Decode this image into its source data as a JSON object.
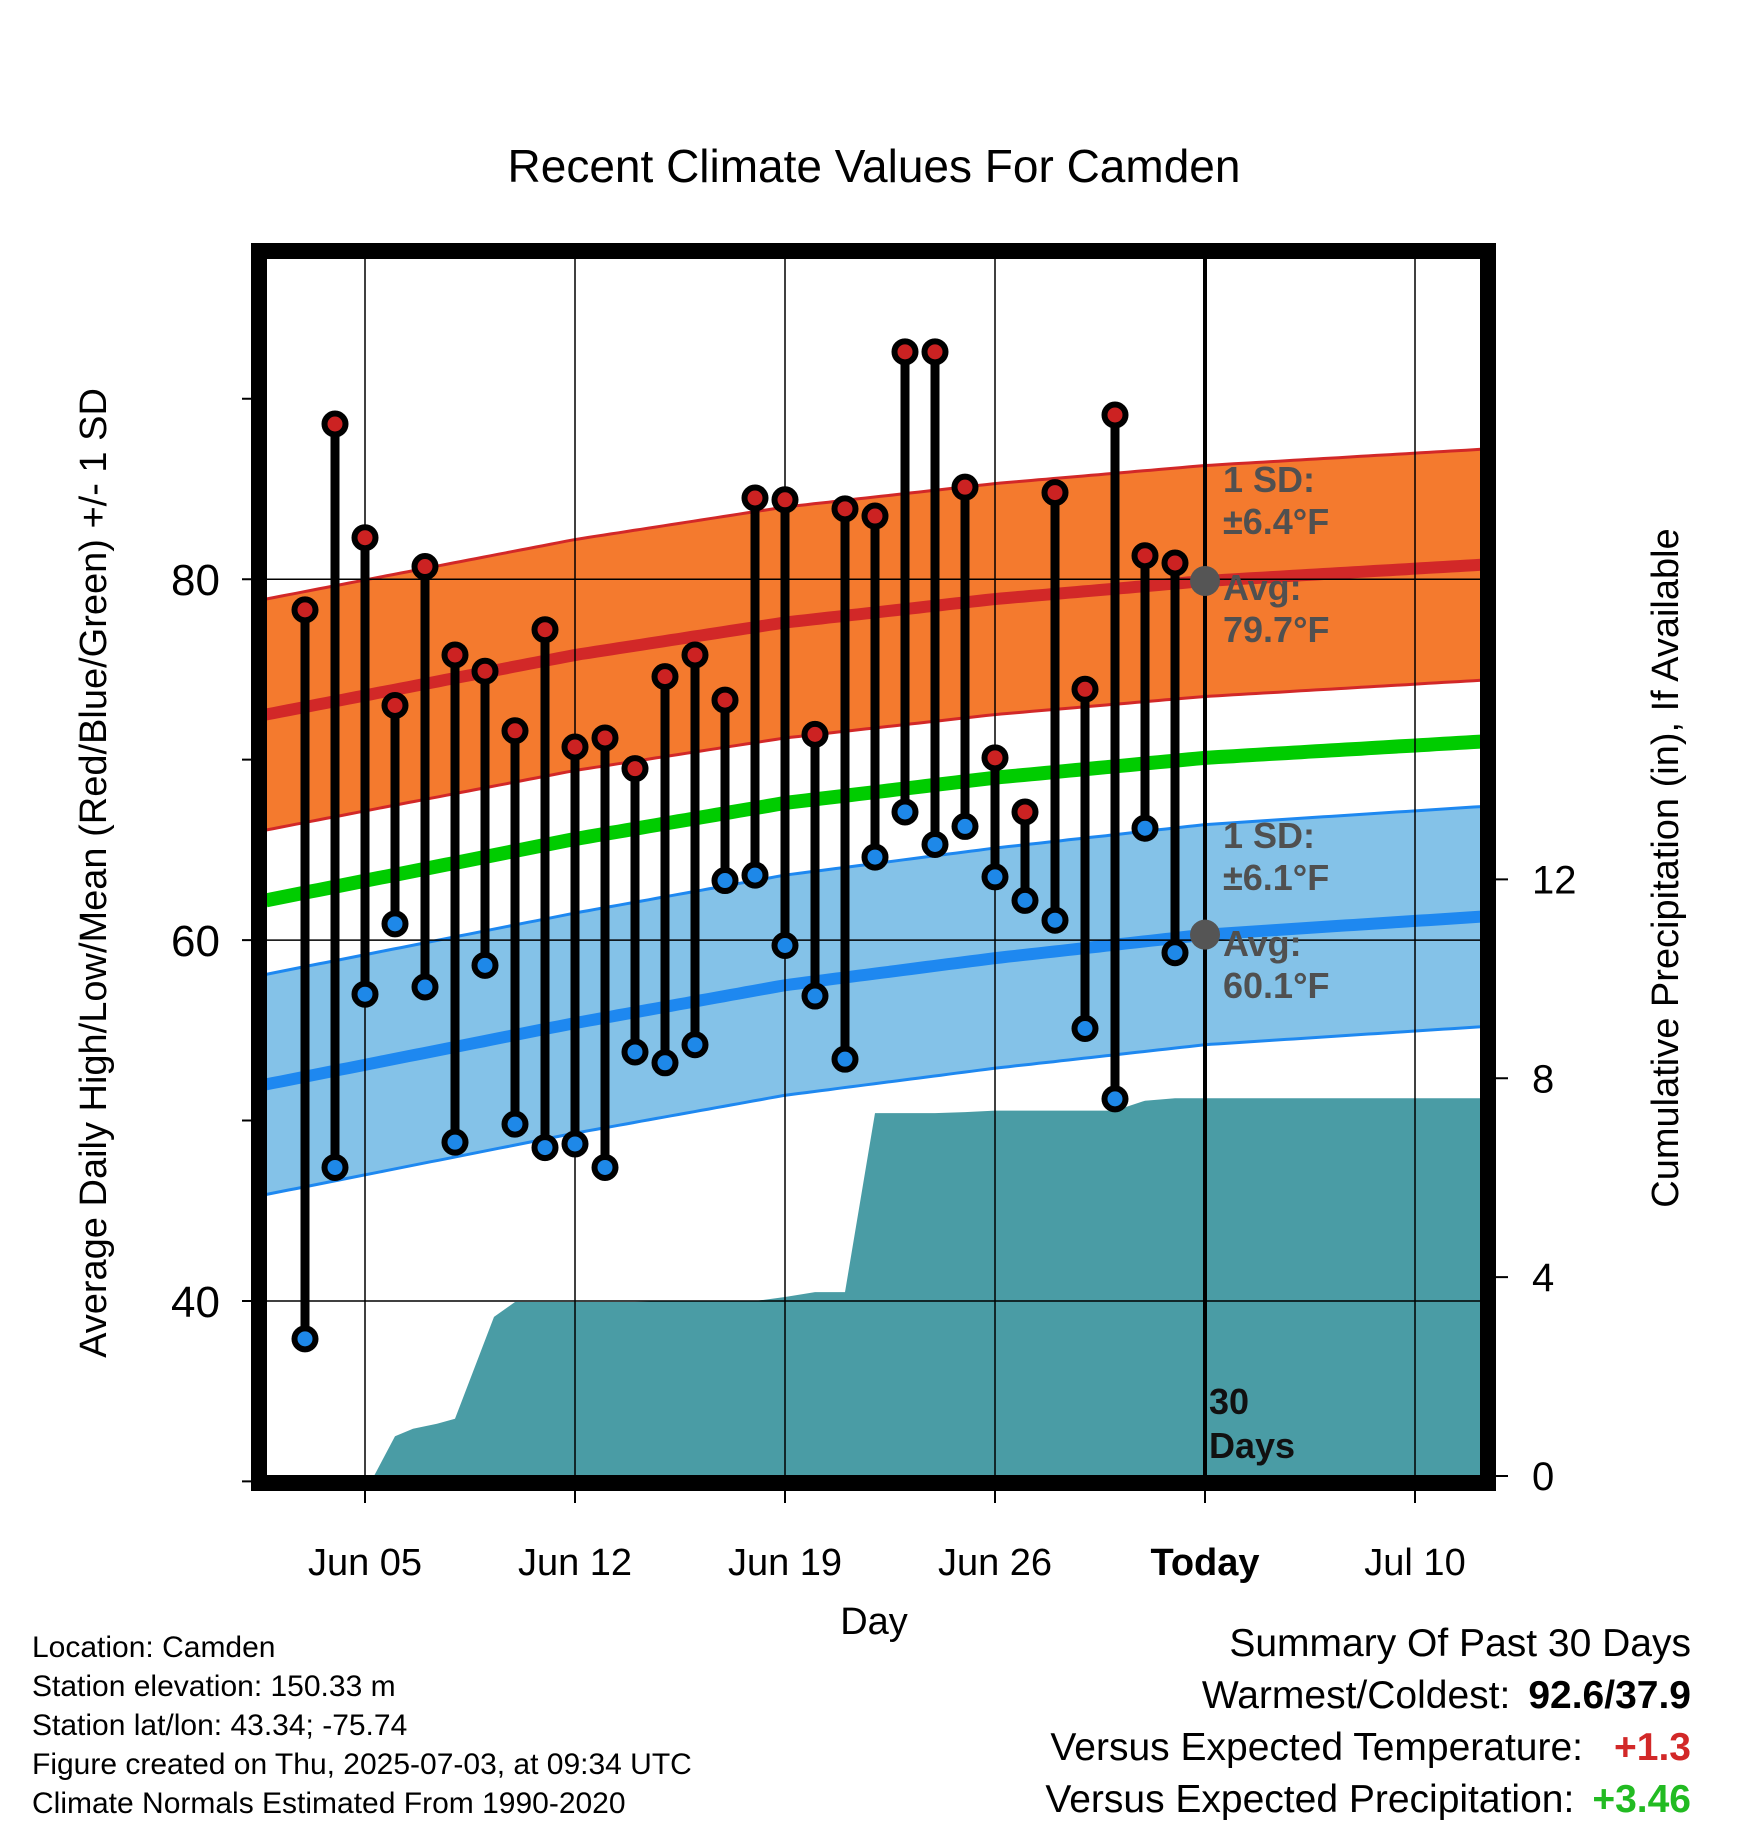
{
  "chart_data": {
    "type": "line",
    "title": "Recent Climate Values For Camden",
    "xlabel": "Day",
    "ylabel_left": "Average Daily High/Low/Mean (Red/Blue/Green) +/- 1 SD",
    "ylabel_right": "Cumulative Precipitation (in), If Available",
    "x_tick_labels": [
      "Jun 05",
      "Jun 12",
      "Jun 19",
      "Jun 26",
      "Today",
      "Jul 10"
    ],
    "x_tick_days": [
      5,
      12,
      19,
      26,
      33,
      40
    ],
    "xlim_days": [
      1.7,
      42.2
    ],
    "today_day": 33,
    "y_left_ticks": [
      40,
      60,
      80
    ],
    "y_left_minor_ticks": [
      30,
      50,
      70,
      90
    ],
    "ylim_left": [
      30.3,
      97.8
    ],
    "y_right_ticks": [
      0,
      4,
      8,
      12
    ],
    "ylim_right": [
      0,
      24.5
    ],
    "days_label": "30",
    "days_word": "Days",
    "high_sd_label": "1 SD:",
    "high_sd_value": "±6.4°F",
    "high_avg_label": "Avg:",
    "high_avg_value": "79.7°F",
    "low_sd_label": "1 SD:",
    "low_sd_value": "±6.1°F",
    "low_avg_label": "Avg:",
    "low_avg_value": "60.1°F",
    "normal_high": {
      "days": [
        1.7,
        12,
        19,
        26,
        33,
        42.2
      ],
      "values": [
        72.5,
        75.8,
        77.6,
        78.9,
        79.9,
        80.8
      ]
    },
    "normal_high_sd": 6.4,
    "normal_low": {
      "days": [
        1.7,
        12,
        19,
        26,
        33,
        42.2
      ],
      "values": [
        52.0,
        55.4,
        57.5,
        59.0,
        60.3,
        61.3
      ]
    },
    "normal_low_sd": 6.1,
    "normal_mean": {
      "days": [
        1.7,
        12,
        19,
        26,
        33,
        42.2
      ],
      "values": [
        62.2,
        65.6,
        67.6,
        69.0,
        70.1,
        71.0
      ]
    },
    "observations": {
      "days": [
        3,
        4,
        5,
        6,
        7,
        8,
        9,
        10,
        11,
        12,
        13,
        14,
        15,
        16,
        17,
        18,
        19,
        20,
        21,
        22,
        23,
        24,
        25,
        26,
        27,
        28,
        29,
        30,
        31,
        32
      ],
      "highs": [
        78.3,
        88.6,
        82.3,
        73.0,
        80.7,
        75.8,
        74.9,
        71.6,
        77.2,
        70.7,
        71.2,
        69.5,
        74.6,
        75.8,
        73.3,
        84.5,
        84.4,
        71.4,
        83.9,
        83.5,
        92.6,
        92.6,
        85.1,
        70.1,
        67.1,
        84.8,
        73.9,
        89.1,
        81.3,
        80.9
      ],
      "lows": [
        37.9,
        47.4,
        57.0,
        60.9,
        57.4,
        48.8,
        58.6,
        49.8,
        48.5,
        48.7,
        47.4,
        53.8,
        53.2,
        54.2,
        63.3,
        63.6,
        59.7,
        56.9,
        53.4,
        64.6,
        67.1,
        65.3,
        66.3,
        63.5,
        62.2,
        61.1,
        55.1,
        51.2,
        66.2,
        59.3
      ]
    },
    "precip_cumulative": {
      "days": [
        2.0,
        5.3,
        6.0,
        6.6,
        7.4,
        8.0,
        9.3,
        10.0,
        11.0,
        12.0,
        13.0,
        14.0,
        15.0,
        16.0,
        17.0,
        18.0,
        19.0,
        20.0,
        21.0,
        22.0,
        23.0,
        24.0,
        25.0,
        26.0,
        27.0,
        28.0,
        29.0,
        30.0,
        31.0,
        32.0,
        33.0,
        42.2
      ],
      "values": [
        0,
        0,
        0.8,
        0.95,
        1.05,
        1.15,
        3.2,
        3.5,
        3.5,
        3.5,
        3.5,
        3.5,
        3.52,
        3.52,
        3.52,
        3.52,
        3.6,
        3.7,
        3.7,
        7.3,
        7.3,
        7.3,
        7.32,
        7.35,
        7.35,
        7.35,
        7.35,
        7.35,
        7.55,
        7.6,
        7.6,
        7.6
      ]
    },
    "colors": {
      "high_band": "#F47A2E",
      "high_line": "#D22828",
      "low_band": "#84C2E8",
      "low_line": "#1E88F0",
      "mean_line": "#00CC00",
      "precip": "#4A9CA5",
      "high_dot": "#CC2222",
      "low_dot": "#1E88E8",
      "band_text": "#505050"
    },
    "grid": true
  },
  "info": {
    "location": "Location: Camden",
    "elevation": "Station elevation: 150.33 m",
    "latlon": "Station lat/lon: 43.34; -75.74",
    "created": "Figure created on Thu, 2025-07-03, at 09:34 UTC",
    "normals": "Climate Normals Estimated From 1990-2020"
  },
  "summary": {
    "title": "Summary Of Past 30 Days",
    "warmest_label": "Warmest/Coldest:",
    "warmest_value": "92.6/37.9",
    "temp_label": "Versus Expected Temperature:",
    "temp_value": "+1.3",
    "temp_color": "#D22828",
    "precip_label": "Versus Expected Precipitation:",
    "precip_value": "+3.46",
    "precip_color": "#22BB22"
  }
}
